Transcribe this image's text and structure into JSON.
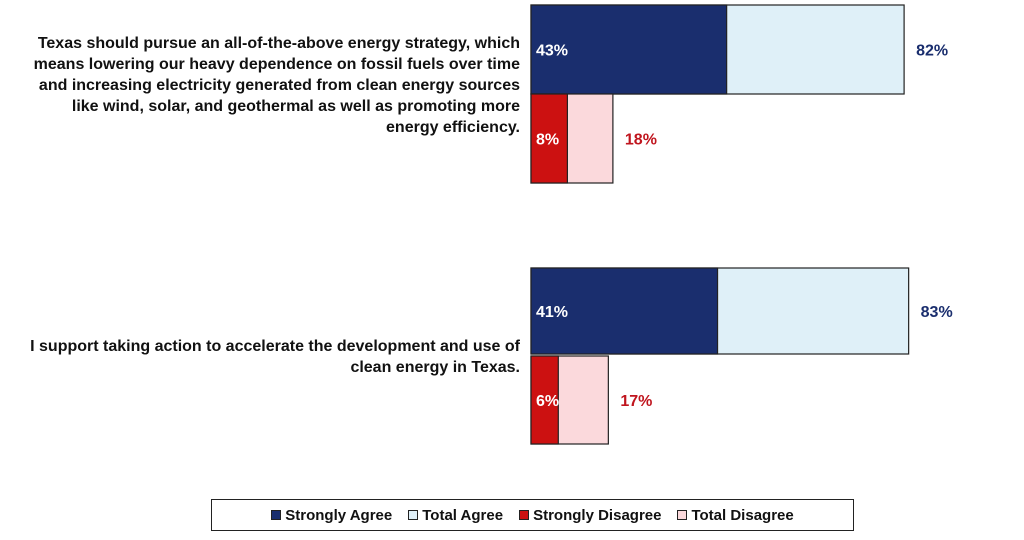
{
  "chart_data": {
    "type": "bar",
    "orientation": "horizontal",
    "stacking": "overlaid",
    "categories": [
      "Texas should pursue an all-of-the-above energy strategy, which means lowering our heavy dependence on fossil fuels over time and increasing electricity generated from clean energy sources like wind, solar, and geothermal as well as promoting more energy efficiency.",
      "I support taking action to accelerate the development and use of clean energy in Texas."
    ],
    "series": [
      {
        "name": "Strongly Agree",
        "values": [
          43,
          41
        ],
        "labels": [
          "43%",
          "41%"
        ],
        "color": "#1a2e6e",
        "group": "agree"
      },
      {
        "name": "Total Agree",
        "values": [
          82,
          83
        ],
        "labels": [
          "82%",
          "83%"
        ],
        "color": "#dff0f8",
        "group": "agree"
      },
      {
        "name": "Strongly Disagree",
        "values": [
          8,
          6
        ],
        "labels": [
          "8%",
          "6%"
        ],
        "color": "#cc1111",
        "group": "disagree"
      },
      {
        "name": "Total Disagree",
        "values": [
          18,
          17
        ],
        "labels": [
          "18%",
          "17%"
        ],
        "color": "#fbd9dc",
        "group": "disagree"
      }
    ],
    "xlim": [
      0,
      100
    ],
    "grid": false,
    "legend": "bottom",
    "label_colors": {
      "agree": "#1a2e6e",
      "disagree": "#c0151e",
      "inner": "#ffffff"
    }
  }
}
